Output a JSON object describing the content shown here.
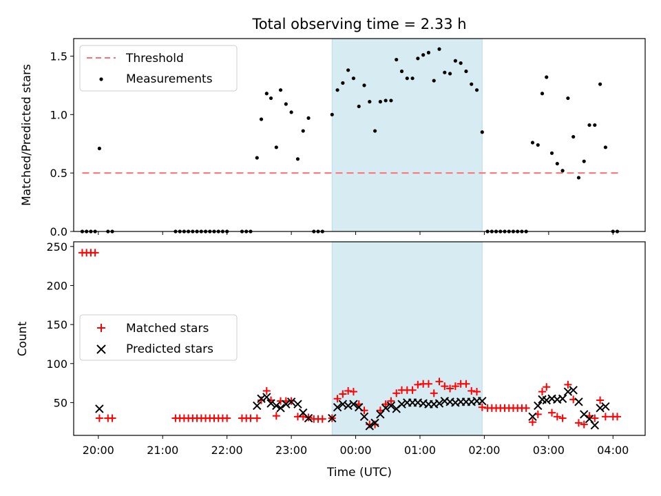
{
  "chart_data": [
    {
      "type": "scatter",
      "title": "Total observing time = 2.33 h",
      "ylabel": "Matched/Predicted stars",
      "xlabel": "",
      "xlim": [
        "19:37",
        "04:30"
      ],
      "ylim": [
        0,
        1.65
      ],
      "yticks": [
        0.0,
        0.5,
        1.0,
        1.5
      ],
      "ytick_labels": [
        "0.0",
        "0.5",
        "1.0",
        "1.5"
      ],
      "legend_position": "top-left",
      "shaded_interval": {
        "start": "23:38",
        "end": "01:58",
        "color": "#add8e6"
      },
      "threshold": {
        "name": "Threshold",
        "value": 0.5,
        "x_start": "19:45",
        "x_end": "04:05",
        "color": "#ff6f6f"
      },
      "series": [
        {
          "name": "Measurements",
          "color": "#000000",
          "points": [
            [
              "19:45",
              0
            ],
            [
              "19:49",
              0
            ],
            [
              "19:53",
              0
            ],
            [
              "19:57",
              0
            ],
            [
              "20:01",
              0.71
            ],
            [
              "20:09",
              0
            ],
            [
              "20:13",
              0
            ],
            [
              "21:12",
              0
            ],
            [
              "21:16",
              0
            ],
            [
              "21:20",
              0
            ],
            [
              "21:24",
              0
            ],
            [
              "21:28",
              0
            ],
            [
              "21:32",
              0
            ],
            [
              "21:36",
              0
            ],
            [
              "21:40",
              0
            ],
            [
              "21:44",
              0
            ],
            [
              "21:48",
              0
            ],
            [
              "21:52",
              0
            ],
            [
              "21:56",
              0
            ],
            [
              "22:00",
              0
            ],
            [
              "22:14",
              0
            ],
            [
              "22:18",
              0
            ],
            [
              "22:22",
              0
            ],
            [
              "22:28",
              0.63
            ],
            [
              "22:32",
              0.96
            ],
            [
              "22:37",
              1.18
            ],
            [
              "22:41",
              1.14
            ],
            [
              "22:46",
              0.72
            ],
            [
              "22:50",
              1.21
            ],
            [
              "22:55",
              1.09
            ],
            [
              "23:00",
              1.02
            ],
            [
              "23:06",
              0.62
            ],
            [
              "23:11",
              0.86
            ],
            [
              "23:16",
              0.97
            ],
            [
              "23:21",
              0
            ],
            [
              "23:25",
              0
            ],
            [
              "23:29",
              0
            ],
            [
              "23:38",
              1.0
            ],
            [
              "23:43",
              1.21
            ],
            [
              "23:48",
              1.27
            ],
            [
              "23:53",
              1.38
            ],
            [
              "23:58",
              1.31
            ],
            [
              "00:03",
              1.07
            ],
            [
              "00:08",
              1.25
            ],
            [
              "00:13",
              1.11
            ],
            [
              "00:18",
              0.86
            ],
            [
              "00:23",
              1.11
            ],
            [
              "00:28",
              1.12
            ],
            [
              "00:33",
              1.12
            ],
            [
              "00:38",
              1.47
            ],
            [
              "00:43",
              1.37
            ],
            [
              "00:48",
              1.31
            ],
            [
              "00:53",
              1.31
            ],
            [
              "00:58",
              1.48
            ],
            [
              "01:03",
              1.51
            ],
            [
              "01:08",
              1.53
            ],
            [
              "01:13",
              1.29
            ],
            [
              "01:18",
              1.56
            ],
            [
              "01:23",
              1.36
            ],
            [
              "01:28",
              1.35
            ],
            [
              "01:33",
              1.46
            ],
            [
              "01:38",
              1.44
            ],
            [
              "01:43",
              1.37
            ],
            [
              "01:48",
              1.26
            ],
            [
              "01:53",
              1.21
            ],
            [
              "01:58",
              0.85
            ],
            [
              "02:03",
              0
            ],
            [
              "02:07",
              0
            ],
            [
              "02:11",
              0
            ],
            [
              "02:15",
              0
            ],
            [
              "02:19",
              0
            ],
            [
              "02:23",
              0
            ],
            [
              "02:27",
              0
            ],
            [
              "02:31",
              0
            ],
            [
              "02:35",
              0
            ],
            [
              "02:39",
              0
            ],
            [
              "02:45",
              0.76
            ],
            [
              "02:50",
              0.74
            ],
            [
              "02:54",
              1.18
            ],
            [
              "02:58",
              1.32
            ],
            [
              "03:03",
              0.67
            ],
            [
              "03:08",
              0.58
            ],
            [
              "03:13",
              0.52
            ],
            [
              "03:18",
              1.14
            ],
            [
              "03:23",
              0.81
            ],
            [
              "03:28",
              0.46
            ],
            [
              "03:33",
              0.6
            ],
            [
              "03:38",
              0.91
            ],
            [
              "03:43",
              0.91
            ],
            [
              "03:48",
              1.26
            ],
            [
              "03:53",
              0.72
            ],
            [
              "04:00",
              0
            ],
            [
              "04:04",
              0
            ]
          ]
        }
      ]
    },
    {
      "type": "scatter",
      "title": "",
      "xlabel": "Time (UTC)",
      "ylabel": "Count",
      "xlim": [
        "19:37",
        "04:30"
      ],
      "ylim": [
        8,
        256
      ],
      "yticks": [
        50,
        100,
        150,
        200,
        250
      ],
      "xticks": [
        "20:00",
        "21:00",
        "22:00",
        "23:00",
        "00:00",
        "01:00",
        "02:00",
        "03:00",
        "04:00"
      ],
      "legend_position": "center-left",
      "shaded_interval": {
        "start": "23:38",
        "end": "01:58",
        "color": "#add8e6"
      },
      "series": [
        {
          "name": "Matched stars",
          "marker": "plus",
          "color": "#ff0000",
          "points": [
            [
              "19:45",
              242
            ],
            [
              "19:49",
              242
            ],
            [
              "19:53",
              242
            ],
            [
              "19:57",
              242
            ],
            [
              "20:01",
              30
            ],
            [
              "20:09",
              30
            ],
            [
              "20:13",
              30
            ],
            [
              "21:12",
              30
            ],
            [
              "21:16",
              30
            ],
            [
              "21:20",
              30
            ],
            [
              "21:24",
              30
            ],
            [
              "21:28",
              30
            ],
            [
              "21:32",
              30
            ],
            [
              "21:36",
              30
            ],
            [
              "21:40",
              30
            ],
            [
              "21:44",
              30
            ],
            [
              "21:48",
              30
            ],
            [
              "21:52",
              30
            ],
            [
              "21:56",
              30
            ],
            [
              "22:00",
              30
            ],
            [
              "22:14",
              30
            ],
            [
              "22:18",
              30
            ],
            [
              "22:22",
              30
            ],
            [
              "22:28",
              30
            ],
            [
              "22:32",
              53
            ],
            [
              "22:37",
              65
            ],
            [
              "22:41",
              53
            ],
            [
              "22:46",
              33
            ],
            [
              "22:50",
              52
            ],
            [
              "22:55",
              52
            ],
            [
              "23:00",
              52
            ],
            [
              "23:06",
              32
            ],
            [
              "23:11",
              32
            ],
            [
              "23:16",
              31
            ],
            [
              "23:21",
              29
            ],
            [
              "23:25",
              29
            ],
            [
              "23:29",
              29
            ],
            [
              "23:38",
              30
            ],
            [
              "23:43",
              55
            ],
            [
              "23:48",
              61
            ],
            [
              "23:53",
              65
            ],
            [
              "23:58",
              64
            ],
            [
              "00:03",
              48
            ],
            [
              "00:08",
              40
            ],
            [
              "00:13",
              22
            ],
            [
              "00:18",
              22
            ],
            [
              "00:23",
              40
            ],
            [
              "00:28",
              48
            ],
            [
              "00:33",
              52
            ],
            [
              "00:38",
              62
            ],
            [
              "00:43",
              66
            ],
            [
              "00:48",
              66
            ],
            [
              "00:53",
              66
            ],
            [
              "00:58",
              73
            ],
            [
              "01:03",
              74
            ],
            [
              "01:08",
              74
            ],
            [
              "01:13",
              62
            ],
            [
              "01:18",
              77
            ],
            [
              "01:23",
              71
            ],
            [
              "01:28",
              68
            ],
            [
              "01:33",
              71
            ],
            [
              "01:38",
              74
            ],
            [
              "01:43",
              74
            ],
            [
              "01:48",
              65
            ],
            [
              "01:53",
              64
            ],
            [
              "01:58",
              44
            ],
            [
              "02:03",
              43
            ],
            [
              "02:07",
              43
            ],
            [
              "02:11",
              43
            ],
            [
              "02:15",
              43
            ],
            [
              "02:19",
              43
            ],
            [
              "02:23",
              43
            ],
            [
              "02:27",
              43
            ],
            [
              "02:31",
              43
            ],
            [
              "02:35",
              43
            ],
            [
              "02:39",
              43
            ],
            [
              "02:45",
              25
            ],
            [
              "02:50",
              35
            ],
            [
              "02:54",
              64
            ],
            [
              "02:58",
              70
            ],
            [
              "03:03",
              37
            ],
            [
              "03:08",
              32
            ],
            [
              "03:13",
              30
            ],
            [
              "03:18",
              73
            ],
            [
              "03:23",
              54
            ],
            [
              "03:28",
              24
            ],
            [
              "03:33",
              22
            ],
            [
              "03:38",
              33
            ],
            [
              "03:43",
              30
            ],
            [
              "03:48",
              53
            ],
            [
              "03:53",
              32
            ],
            [
              "04:00",
              32
            ],
            [
              "04:04",
              32
            ]
          ]
        },
        {
          "name": "Predicted stars",
          "marker": "x",
          "color": "#000000",
          "points": [
            [
              "20:01",
              42
            ],
            [
              "22:28",
              46
            ],
            [
              "22:32",
              55
            ],
            [
              "22:37",
              57
            ],
            [
              "22:41",
              49
            ],
            [
              "22:46",
              46
            ],
            [
              "22:50",
              43
            ],
            [
              "22:55",
              48
            ],
            [
              "23:00",
              51
            ],
            [
              "23:06",
              48
            ],
            [
              "23:11",
              37
            ],
            [
              "23:16",
              30
            ],
            [
              "23:38",
              30
            ],
            [
              "23:43",
              44
            ],
            [
              "23:48",
              48
            ],
            [
              "23:53",
              46
            ],
            [
              "23:58",
              48
            ],
            [
              "00:03",
              44
            ],
            [
              "00:08",
              32
            ],
            [
              "00:13",
              20
            ],
            [
              "00:18",
              24
            ],
            [
              "00:23",
              35
            ],
            [
              "00:28",
              43
            ],
            [
              "00:33",
              46
            ],
            [
              "00:38",
              42
            ],
            [
              "00:43",
              48
            ],
            [
              "00:48",
              50
            ],
            [
              "00:53",
              50
            ],
            [
              "00:58",
              50
            ],
            [
              "01:03",
              49
            ],
            [
              "01:08",
              48
            ],
            [
              "01:13",
              48
            ],
            [
              "01:18",
              49
            ],
            [
              "01:23",
              52
            ],
            [
              "01:28",
              51
            ],
            [
              "01:33",
              50
            ],
            [
              "01:38",
              51
            ],
            [
              "01:43",
              51
            ],
            [
              "01:48",
              51
            ],
            [
              "01:53",
              52
            ],
            [
              "01:58",
              52
            ],
            [
              "02:45",
              32
            ],
            [
              "02:50",
              46
            ],
            [
              "02:54",
              54
            ],
            [
              "02:58",
              53
            ],
            [
              "03:03",
              55
            ],
            [
              "03:08",
              54
            ],
            [
              "03:13",
              55
            ],
            [
              "03:18",
              64
            ],
            [
              "03:23",
              66
            ],
            [
              "03:28",
              51
            ],
            [
              "03:33",
              35
            ],
            [
              "03:38",
              29
            ],
            [
              "03:43",
              21
            ],
            [
              "03:48",
              43
            ],
            [
              "03:53",
              45
            ]
          ]
        }
      ]
    }
  ]
}
